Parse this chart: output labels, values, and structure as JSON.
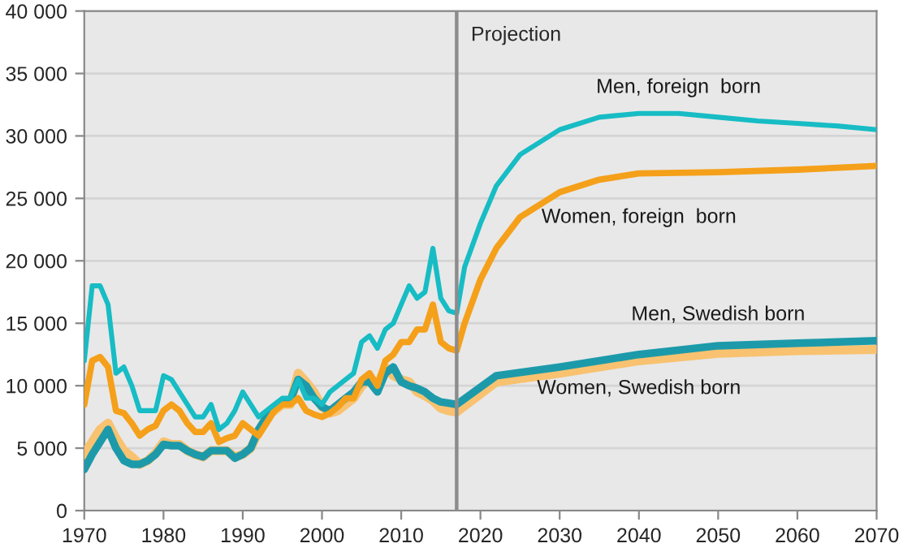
{
  "chart_data": {
    "type": "line",
    "xlim": [
      1970,
      2070
    ],
    "xticks": [
      1970,
      1980,
      1990,
      2000,
      2010,
      2020,
      2030,
      2040,
      2050,
      2060,
      2070
    ],
    "ylim": [
      0,
      40000
    ],
    "yticks": [
      0,
      {
        "value": 5000,
        "label": "5 000"
      },
      {
        "value": 10000,
        "label": "10 000"
      },
      {
        "value": 15000,
        "label": "15 000"
      },
      {
        "value": 20000,
        "label": "20 000"
      },
      {
        "value": 25000,
        "label": "25 000"
      },
      {
        "value": 30000,
        "label": "30 000"
      },
      {
        "value": 35000,
        "label": "35 000"
      },
      {
        "value": 40000,
        "label": "40 000"
      }
    ],
    "grid": "y",
    "legend": false,
    "marker": "none",
    "line_style": "solid",
    "ref_lines": [
      {
        "axis": "x",
        "value": 2017,
        "label": "Projection",
        "color": "#8c8c8c"
      }
    ],
    "series": [
      {
        "name": "Men, foreign  born",
        "color": "#17bcc4",
        "x": [
          1970,
          1971,
          1972,
          1973,
          1974,
          1975,
          1976,
          1977,
          1978,
          1979,
          1980,
          1981,
          1982,
          1983,
          1984,
          1985,
          1986,
          1987,
          1988,
          1989,
          1990,
          1991,
          1992,
          1993,
          1994,
          1995,
          1996,
          1997,
          1998,
          1999,
          2000,
          2001,
          2002,
          2003,
          2004,
          2005,
          2006,
          2007,
          2008,
          2009,
          2010,
          2011,
          2012,
          2013,
          2014,
          2015,
          2016,
          2017,
          2018,
          2020,
          2022,
          2025,
          2030,
          2035,
          2040,
          2045,
          2050,
          2055,
          2060,
          2065,
          2070
        ],
        "values": [
          12000,
          18000,
          18000,
          16500,
          11000,
          11500,
          10000,
          8000,
          8000,
          8000,
          10800,
          10500,
          9500,
          8500,
          7500,
          7500,
          8500,
          6500,
          7000,
          8000,
          9500,
          8500,
          7500,
          8000,
          8500,
          9000,
          9000,
          10500,
          9000,
          9000,
          8500,
          9500,
          10000,
          10500,
          11000,
          13500,
          14000,
          13000,
          14500,
          15000,
          16500,
          18000,
          17000,
          17500,
          21000,
          17000,
          16000,
          15800,
          19500,
          23000,
          26000,
          28500,
          30500,
          31500,
          31800,
          31800,
          31500,
          31200,
          31000,
          30800,
          30500
        ]
      },
      {
        "name": "Women, foreign  born",
        "color": "#f5a01a",
        "x": [
          1970,
          1971,
          1972,
          1973,
          1974,
          1975,
          1976,
          1977,
          1978,
          1979,
          1980,
          1981,
          1982,
          1983,
          1984,
          1985,
          1986,
          1987,
          1988,
          1989,
          1990,
          1991,
          1992,
          1993,
          1994,
          1995,
          1996,
          1997,
          1998,
          1999,
          2000,
          2001,
          2002,
          2003,
          2004,
          2005,
          2006,
          2007,
          2008,
          2009,
          2010,
          2011,
          2012,
          2013,
          2014,
          2015,
          2016,
          2017,
          2018,
          2020,
          2022,
          2025,
          2030,
          2035,
          2040,
          2050,
          2060,
          2070
        ],
        "values": [
          8500,
          12000,
          12300,
          11500,
          8000,
          7800,
          7000,
          6000,
          6500,
          6800,
          8000,
          8500,
          8000,
          7000,
          6300,
          6300,
          7000,
          5500,
          5800,
          6000,
          7000,
          6500,
          6000,
          7000,
          8000,
          8500,
          8500,
          9000,
          8000,
          7700,
          7500,
          7800,
          8300,
          9000,
          9000,
          10500,
          11000,
          10000,
          12000,
          12500,
          13500,
          13500,
          14500,
          14500,
          16500,
          13500,
          13000,
          12800,
          15000,
          18500,
          21000,
          23500,
          25500,
          26500,
          27000,
          27100,
          27300,
          27600
        ]
      },
      {
        "name": "Men, Swedish born",
        "color": "#1d9aaa",
        "x": [
          1970,
          1971,
          1972,
          1973,
          1974,
          1975,
          1976,
          1977,
          1978,
          1979,
          1980,
          1981,
          1982,
          1983,
          1984,
          1985,
          1986,
          1987,
          1988,
          1989,
          1990,
          1991,
          1992,
          1993,
          1994,
          1995,
          1996,
          1997,
          1998,
          1999,
          2000,
          2001,
          2002,
          2003,
          2004,
          2005,
          2006,
          2007,
          2008,
          2009,
          2010,
          2011,
          2012,
          2013,
          2014,
          2015,
          2016,
          2017,
          2022,
          2030,
          2040,
          2050,
          2060,
          2070
        ],
        "values": [
          3300,
          4500,
          5500,
          6500,
          5000,
          4000,
          3700,
          3700,
          4000,
          4500,
          5300,
          5200,
          5200,
          4800,
          4500,
          4300,
          4800,
          4800,
          4800,
          4200,
          4500,
          5000,
          6500,
          7500,
          8300,
          8700,
          8800,
          10500,
          10000,
          9000,
          8300,
          8000,
          8500,
          9000,
          9500,
          10300,
          10300,
          9500,
          11000,
          11500,
          10300,
          10000,
          9800,
          9500,
          9000,
          8700,
          8600,
          8500,
          10800,
          11500,
          12500,
          13200,
          13400,
          13600
        ]
      },
      {
        "name": "Women, Swedish born",
        "color": "#f8c270",
        "x": [
          1970,
          1971,
          1972,
          1973,
          1974,
          1975,
          1976,
          1977,
          1978,
          1979,
          1980,
          1981,
          1982,
          1983,
          1984,
          1985,
          1986,
          1987,
          1988,
          1989,
          1990,
          1991,
          1992,
          1993,
          1994,
          1995,
          1996,
          1997,
          1998,
          1999,
          2000,
          2001,
          2002,
          2003,
          2004,
          2005,
          2006,
          2007,
          2008,
          2009,
          2010,
          2011,
          2012,
          2013,
          2014,
          2015,
          2016,
          2017,
          2022,
          2030,
          2040,
          2050,
          2060,
          2070
        ],
        "values": [
          4500,
          5500,
          6500,
          7000,
          5800,
          4800,
          4300,
          3700,
          4000,
          4600,
          5500,
          5300,
          5300,
          4800,
          4500,
          4300,
          4800,
          4800,
          4800,
          4300,
          4500,
          5000,
          6300,
          7500,
          8000,
          8500,
          8500,
          11000,
          10300,
          9500,
          8300,
          7800,
          8000,
          8500,
          9000,
          10000,
          10500,
          10000,
          11500,
          10800,
          10500,
          10300,
          9500,
          9200,
          8800,
          8200,
          8000,
          7900,
          10300,
          11000,
          12000,
          12600,
          12800,
          12900
        ]
      }
    ]
  }
}
